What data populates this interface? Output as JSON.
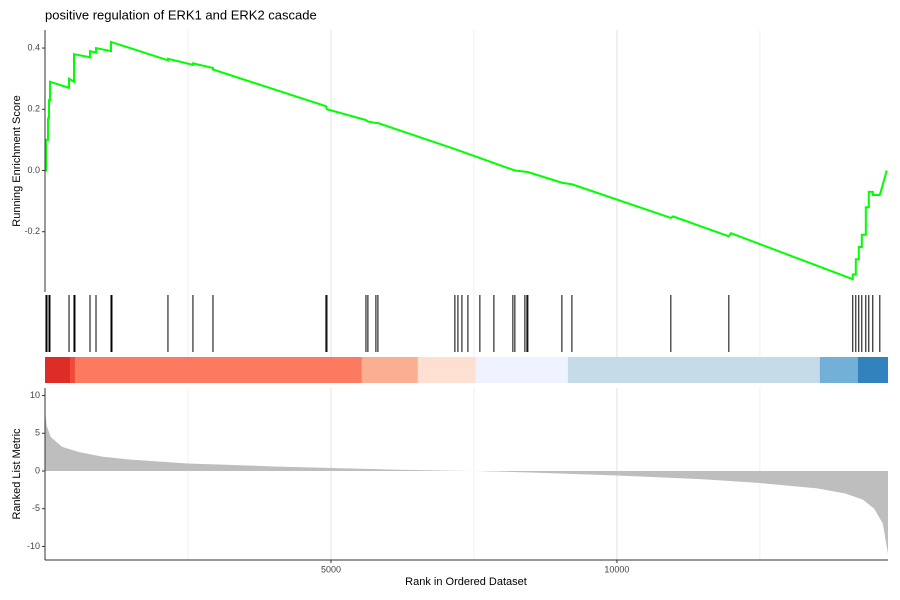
{
  "chart_data": [
    {
      "type": "line",
      "title": "positive regulation of ERK1 and ERK2 cascade",
      "ylabel": "Running Enrichment Score",
      "x": [
        0,
        17,
        17,
        52,
        52,
        70,
        70,
        87,
        87,
        420,
        420,
        507,
        507,
        787,
        787,
        892,
        892,
        1154,
        1154,
        2150,
        2150,
        2587,
        2587,
        2937,
        2937,
        4912,
        4930,
        5612,
        5646,
        5786,
        5821,
        7167,
        8216,
        8443,
        9038,
        9213,
        10943,
        10981,
        11957,
        11995,
        14124,
        14124,
        14177,
        14177,
        14229,
        14229,
        14282,
        14282,
        14352,
        14352,
        14404,
        14404,
        14474,
        14474,
        14597,
        14718
      ],
      "values": [
        0,
        0,
        0.1,
        0.1,
        0.17,
        0.17,
        0.23,
        0.23,
        0.29,
        0.27,
        0.3,
        0.29,
        0.38,
        0.37,
        0.39,
        0.385,
        0.4,
        0.39,
        0.42,
        0.36,
        0.365,
        0.345,
        0.35,
        0.335,
        0.33,
        0.21,
        0.2,
        0.165,
        0.16,
        0.155,
        0.155,
        0.07,
        0.0,
        -0.005,
        -0.04,
        -0.045,
        -0.155,
        -0.15,
        -0.215,
        -0.205,
        -0.355,
        -0.34,
        -0.34,
        -0.29,
        -0.29,
        -0.25,
        -0.25,
        -0.21,
        -0.21,
        -0.12,
        -0.12,
        -0.07,
        -0.07,
        -0.08,
        -0.08,
        0.0
      ],
      "color": "#00ff00",
      "xlim": [
        0,
        14740
      ],
      "ylim": [
        -0.397,
        0.459
      ],
      "yticks": [
        -0.2,
        {
          "value": 0,
          "label": "0.0"
        },
        0.2,
        0.4
      ],
      "x_grid": [
        2500,
        5000,
        7500,
        10000,
        12500
      ]
    },
    {
      "type": "rug",
      "color": "#000000",
      "xlim": [
        0,
        14740
      ],
      "x": [
        17,
        35,
        70,
        87,
        420,
        507,
        524,
        787,
        892,
        1154,
        1171,
        2150,
        2587,
        2937,
        4912,
        4930,
        5612,
        5646,
        5786,
        5821,
        7167,
        7220,
        7290,
        7395,
        7604,
        7849,
        8181,
        8216,
        8391,
        8426,
        8443,
        9038,
        9213,
        10943,
        11957,
        14124,
        14177,
        14229,
        14282,
        14352,
        14404,
        14474,
        14597
      ],
      "bands": [
        {
          "start": 0,
          "end": 437,
          "color": "#de2d26"
        },
        {
          "start": 437,
          "end": 524,
          "color": "#ef4a3a"
        },
        {
          "start": 524,
          "end": 5541,
          "color": "#fb7a60"
        },
        {
          "start": 5541,
          "end": 6520,
          "color": "#fcae91"
        },
        {
          "start": 6520,
          "end": 7534,
          "color": "#fee0d2"
        },
        {
          "start": 7534,
          "end": 9142,
          "color": "#eff3ff"
        },
        {
          "start": 9142,
          "end": 13547,
          "color": "#c6dbe8"
        },
        {
          "start": 13547,
          "end": 14211,
          "color": "#73b0d8"
        },
        {
          "start": 14211,
          "end": 14740,
          "color": "#3182bd"
        }
      ],
      "x_grid": [
        2500,
        5000,
        7500,
        10000,
        12500
      ]
    },
    {
      "type": "area",
      "xlabel": "Rank in Ordered Dataset",
      "ylabel": "Ranked List Metric",
      "color": "#bebebe",
      "x": [
        0,
        30,
        100,
        300,
        600,
        1000,
        1500,
        2500,
        4000,
        5000,
        6000,
        7000,
        7500,
        8500,
        10000,
        11500,
        12500,
        13500,
        14000,
        14300,
        14500,
        14650,
        14740
      ],
      "values": [
        8,
        6,
        4.5,
        3.2,
        2.5,
        1.9,
        1.5,
        1.0,
        0.6,
        0.4,
        0.2,
        0.05,
        0,
        -0.2,
        -0.6,
        -1.1,
        -1.6,
        -2.3,
        -3.0,
        -3.8,
        -5,
        -7,
        -11
      ],
      "xlim": [
        0,
        14740
      ],
      "ylim": [
        -11.8,
        11
      ],
      "xticks": [
        5000,
        10000
      ],
      "yticks": [
        -10,
        -5,
        0,
        5,
        10
      ],
      "x_grid": [
        2500,
        5000,
        7500,
        10000,
        12500
      ]
    }
  ]
}
